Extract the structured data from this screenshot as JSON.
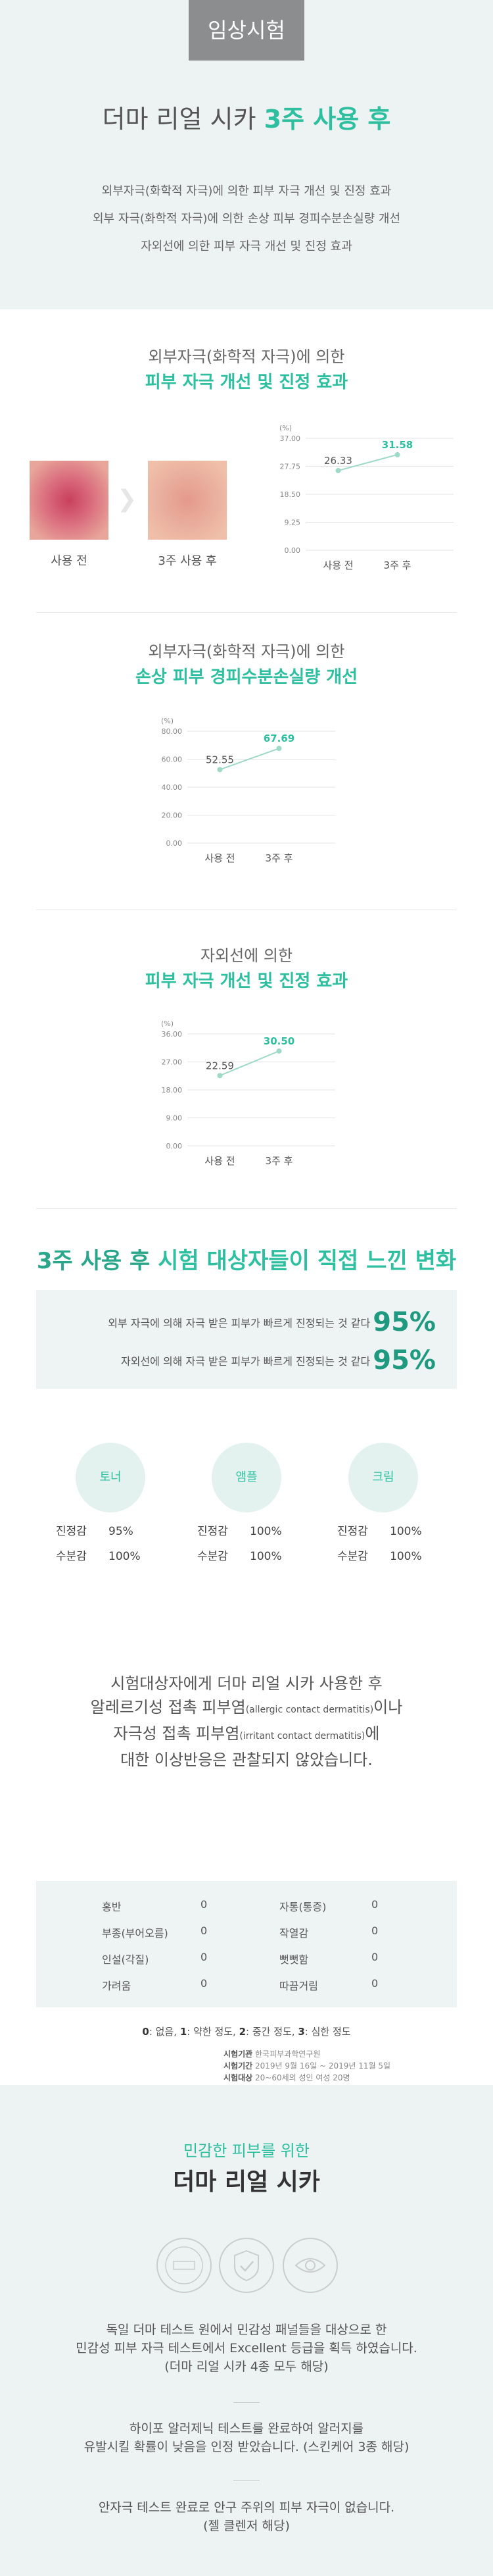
{
  "header": {
    "tag": "임상시험",
    "title_prefix": "더마 리얼 시카",
    "title_highlight": "3주 사용 후",
    "lines": [
      "외부자극(화학적 자극)에 의한 피부 자극 개선 및 진정 효과",
      "외부 자극(화학적 자극)에 의한 손상 피부 경피수분손실량 개선",
      "자외선에 의한 피부 자극 개선 및 진정 효과"
    ]
  },
  "section1": {
    "subtitle": "외부자극(화학적 자극)에 의한",
    "title": "피부 자극 개선 및 진정 효과",
    "before_label": "사용 전",
    "after_label": "3주 사용 후"
  },
  "section2": {
    "subtitle": "외부자극(화학적 자극)에 의한",
    "title": "손상 피부 경피수분손실량 개선"
  },
  "section3": {
    "subtitle": "자외선에 의한",
    "title": "피부 자극 개선 및 진정 효과"
  },
  "chart_data": [
    {
      "type": "line",
      "unit": "(%)",
      "categories": [
        "사용 전",
        "3주 후"
      ],
      "values": [
        26.33,
        31.58
      ],
      "ylim": [
        0,
        37
      ],
      "yticks": [
        "0.00",
        "9.25",
        "18.50",
        "27.75",
        "37.00"
      ]
    },
    {
      "type": "line",
      "unit": "(%)",
      "categories": [
        "사용 전",
        "3주 후"
      ],
      "values": [
        52.55,
        67.69
      ],
      "ylim": [
        0,
        80
      ],
      "yticks": [
        "0.00",
        "20.00",
        "40.00",
        "60.00",
        "80.00"
      ]
    },
    {
      "type": "line",
      "unit": "(%)",
      "categories": [
        "사용 전",
        "3주 후"
      ],
      "values": [
        22.59,
        30.5
      ],
      "ylim": [
        0,
        36
      ],
      "yticks": [
        "0.00",
        "9.00",
        "18.00",
        "27.00",
        "36.00"
      ]
    }
  ],
  "feel": {
    "head_bold": "3주 사용 후",
    "head_rest": "시험 대상자들이 직접 느낀 변화",
    "stats": [
      {
        "text": "외부 자극에 의해 자극 받은 피부가 빠르게 진정되는 것 같다",
        "value": "95%"
      },
      {
        "text": "자외선에 의해 자극 받은 피부가 빠르게 진정되는 것 같다",
        "value": "95%"
      }
    ],
    "products": [
      {
        "name": "토너",
        "rows": [
          {
            "k": "진정감",
            "v": "95%"
          },
          {
            "k": "수분감",
            "v": "100%"
          }
        ]
      },
      {
        "name": "앰플",
        "rows": [
          {
            "k": "진정감",
            "v": "100%"
          },
          {
            "k": "수분감",
            "v": "100%"
          }
        ]
      },
      {
        "name": "크림",
        "rows": [
          {
            "k": "진정감",
            "v": "100%"
          },
          {
            "k": "수분감",
            "v": "100%"
          }
        ]
      }
    ]
  },
  "safety": {
    "line1": "시험대상자에게 더마 리얼 시카 사용한 후",
    "line2a": "알레르기성 접촉 피부염",
    "line2b": "(allergic contact dermatitis)",
    "line2c": "이나",
    "line3a": "자극성 접촉 피부염",
    "line3b": "(irritant contact dermatitis)",
    "line3c": "에",
    "line4": "대한 이상반응은 관찰되지 않았습니다.",
    "symptoms_left": [
      {
        "k": "홍반",
        "v": "0"
      },
      {
        "k": "부종(부어오름)",
        "v": "0"
      },
      {
        "k": "인설(각질)",
        "v": "0"
      },
      {
        "k": "가려움",
        "v": "0"
      }
    ],
    "symptoms_right": [
      {
        "k": "자통(통증)",
        "v": "0"
      },
      {
        "k": "작열감",
        "v": "0"
      },
      {
        "k": "뻣뻣함",
        "v": "0"
      },
      {
        "k": "따끔거림",
        "v": "0"
      }
    ],
    "scale": [
      {
        "n": "0",
        "t": ": 없음, "
      },
      {
        "n": "1",
        "t": ": 약한 정도, "
      },
      {
        "n": "2",
        "t": ": 중간 정도, "
      },
      {
        "n": "3",
        "t": ": 심한 정도"
      }
    ],
    "meta": [
      {
        "k": "시험기관",
        "v": "한국피부과학연구원"
      },
      {
        "k": "시험기간",
        "v": "2019년 9월 16일 ~ 2019년 11월 5일"
      },
      {
        "k": "시험대상",
        "v": "20~60세의 성인 여성 20명"
      }
    ]
  },
  "bottom": {
    "sub": "민감한 피부를 위한",
    "title": "더마 리얼 시카",
    "para1": [
      "독일 더마 테스트 원에서 민감성 패널들을 대상으로 한",
      "민감성 피부 자극 테스트에서 Excellent 등급을 획득 하였습니다.",
      "(더마 리얼 시카 4종 모두 해당)"
    ],
    "para2": [
      "하이포 알러제닉 테스트를 완료하여 알러지를",
      "유발시킬 확률이 낮음을 인정 받았습니다. (스킨케어 3종 해당)"
    ],
    "para3": [
      "안자극 테스트 완료로 안구 주위의 피부 자극이 없습니다.",
      "(젤 클렌저 해당)"
    ]
  },
  "colors": {
    "accent": "#2dbfa0",
    "accent_dark": "#1f9a80",
    "panel": "#edf3f2"
  },
  "icons": [
    "arrow-right-icon",
    "badge-icon",
    "shield-check-icon",
    "eye-icon"
  ]
}
